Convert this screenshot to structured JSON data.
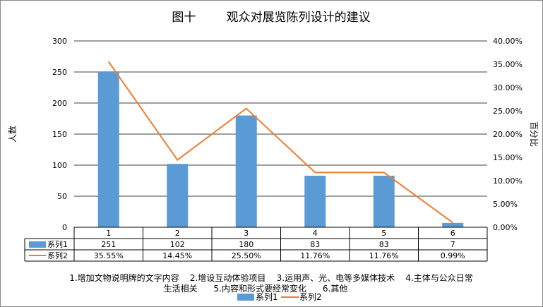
{
  "chart_data": {
    "type": "bar",
    "title": "图十        观众对展览陈列设计的建议",
    "ylabel": "人数",
    "y2label": "百分比",
    "categories": [
      "1",
      "2",
      "3",
      "4",
      "5",
      "6"
    ],
    "ylim": [
      0,
      300
    ],
    "yticks": [
      "0",
      "50",
      "100",
      "150",
      "200",
      "250",
      "300"
    ],
    "y2lim": [
      0,
      40
    ],
    "y2ticks": [
      "0.00%",
      "5.00%",
      "10.00%",
      "15.00%",
      "20.00%",
      "25.00%",
      "30.00%",
      "35.00%",
      "40.00%"
    ],
    "series": [
      {
        "name": "系列1",
        "type": "bar",
        "axis": "left",
        "values": [
          251,
          102,
          180,
          83,
          83,
          7
        ],
        "labels": [
          "251",
          "102",
          "180",
          "83",
          "83",
          "7"
        ]
      },
      {
        "name": "系列2",
        "type": "line",
        "axis": "right",
        "values": [
          35.55,
          14.45,
          25.5,
          11.76,
          11.76,
          0.99
        ],
        "labels": [
          "35.55%",
          "14.45%",
          "25.50%",
          "11.76%",
          "11.76%",
          "0.99%"
        ]
      }
    ],
    "notes": [
      "1.增加文物说明牌的文字内容    2.增设互动体验项目    3.运用声、光、电等多媒体技术    4.主体与公众日常",
      "生活相关      5.内容和形式要经常变化      6.其他"
    ],
    "legend": [
      "系列1",
      "系列2"
    ],
    "colors": {
      "bar": "#5b9bd5",
      "line": "#ed7d31",
      "grid": "#000000"
    },
    "grid": true,
    "legend_position": "bottom"
  }
}
